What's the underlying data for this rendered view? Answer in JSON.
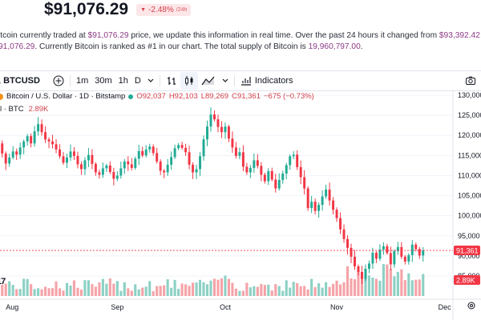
{
  "header": {
    "price": "$91,076.29",
    "change": "-2.48%",
    "change_period": "24h",
    "description": {
      "p1": "itcoin currently traded at ",
      "price_now": "$91,076.29",
      "p2": " price, we update this information in real time. Over the past 24 hours it changed from ",
      "price_prev": "$93,392.42",
      "p3": " to",
      "p4": "91,076.29",
      "p5": ". Currently Bitcoin is ranked as #1 in our chart. The total supply of Bitcoin is ",
      "supply": "19,960,797.00",
      "p6": "."
    }
  },
  "toolbar": {
    "symbol": "BTCUSD",
    "intervals": [
      "1m",
      "30m",
      "1h",
      "D"
    ],
    "active_interval": "D",
    "indicators_label": "Indicators"
  },
  "legend": {
    "pair": "Bitcoin / U.S. Dollar · 1D · Bitstamp",
    "open": "O92,037",
    "high": "H92,103",
    "low": "L89,269",
    "close": "C91,361",
    "change": "−675 (−0.73%)",
    "vol_label": "l · BTC",
    "vol_value": "2.89K"
  },
  "axis": {
    "y_ticks": [
      "130,000",
      "125,000",
      "120,000",
      "115,000",
      "110,000",
      "105,000",
      "100,000",
      "95,000",
      "90,000",
      "85,000"
    ],
    "x_ticks": [
      "Aug",
      "Sep",
      "Oct",
      "Nov",
      "Dec"
    ],
    "last_price_tag": "91,361",
    "last_volume_tag": "2.89K"
  },
  "colors": {
    "up": "#22ab94",
    "down": "#f23645",
    "accent": "#8e3b87",
    "price_line": "#f23645"
  },
  "chart_data": {
    "type": "candlestick",
    "y_range": [
      84000,
      131000
    ],
    "closes": [
      118000,
      115500,
      113000,
      114500,
      116000,
      115200,
      117000,
      118500,
      119800,
      118000,
      121000,
      122800,
      120800,
      119000,
      118500,
      117800,
      116500,
      114800,
      113200,
      114500,
      116000,
      114900,
      112800,
      111600,
      113800,
      115100,
      112900,
      110800,
      110200,
      111800,
      112500,
      110900,
      109200,
      110000,
      111800,
      113500,
      112800,
      111900,
      114200,
      116100,
      115000,
      116500,
      117200,
      115600,
      113500,
      111200,
      110800,
      112700,
      114600,
      116800,
      117600,
      116900,
      115800,
      112700,
      110800,
      111600,
      114800,
      119000,
      122200,
      125200,
      124000,
      122100,
      120800,
      122200,
      119200,
      117000,
      114900,
      115800,
      112200,
      110800,
      111900,
      113800,
      112400,
      110200,
      108600,
      111100,
      109000,
      106800,
      108900,
      110500,
      112600,
      114800,
      115200,
      112100,
      109600,
      106800,
      101900,
      103500,
      101200,
      102700,
      104800,
      106500,
      103800,
      101500,
      99400,
      96600,
      94200,
      92000,
      89800,
      87400,
      86000,
      84300,
      86800,
      88100,
      90800,
      89300,
      91600,
      92400,
      90700,
      87900,
      91200,
      92200,
      89800,
      88600,
      90200,
      92800,
      91700,
      90100,
      91361
    ],
    "volume_label": "2.89K"
  }
}
